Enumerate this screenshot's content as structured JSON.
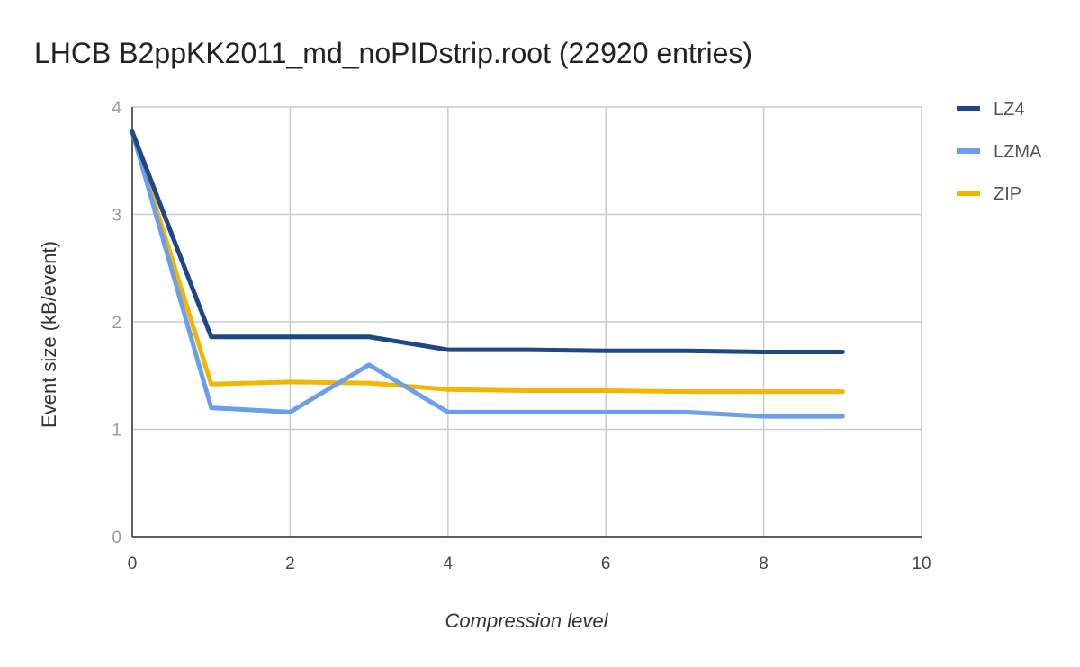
{
  "chart_data": {
    "type": "line",
    "title": "LHCB B2ppKK2011_md_noPIDstrip.root  (22920 entries)",
    "xlabel": "Compression level",
    "ylabel": "Event size (kB/event)",
    "xlim": [
      0,
      10
    ],
    "ylim": [
      0,
      4
    ],
    "xticks": [
      0,
      2,
      4,
      6,
      8,
      10
    ],
    "yticks": [
      0,
      1,
      2,
      3,
      4
    ],
    "grid": true,
    "legend_position": "right",
    "x": [
      0,
      1,
      2,
      3,
      4,
      5,
      6,
      7,
      8,
      9
    ],
    "series": [
      {
        "name": "LZ4",
        "color": "#1f4788",
        "values": [
          3.77,
          1.86,
          1.86,
          1.86,
          1.74,
          1.74,
          1.73,
          1.73,
          1.72,
          1.72
        ]
      },
      {
        "name": "LZMA",
        "color": "#6d9eeb",
        "values": [
          3.77,
          1.2,
          1.16,
          1.6,
          1.16,
          1.16,
          1.16,
          1.16,
          1.12,
          1.12
        ]
      },
      {
        "name": "ZIP",
        "color": "#f1b600",
        "values": [
          3.77,
          1.42,
          1.44,
          1.43,
          1.37,
          1.36,
          1.36,
          1.35,
          1.35,
          1.35
        ]
      }
    ]
  }
}
